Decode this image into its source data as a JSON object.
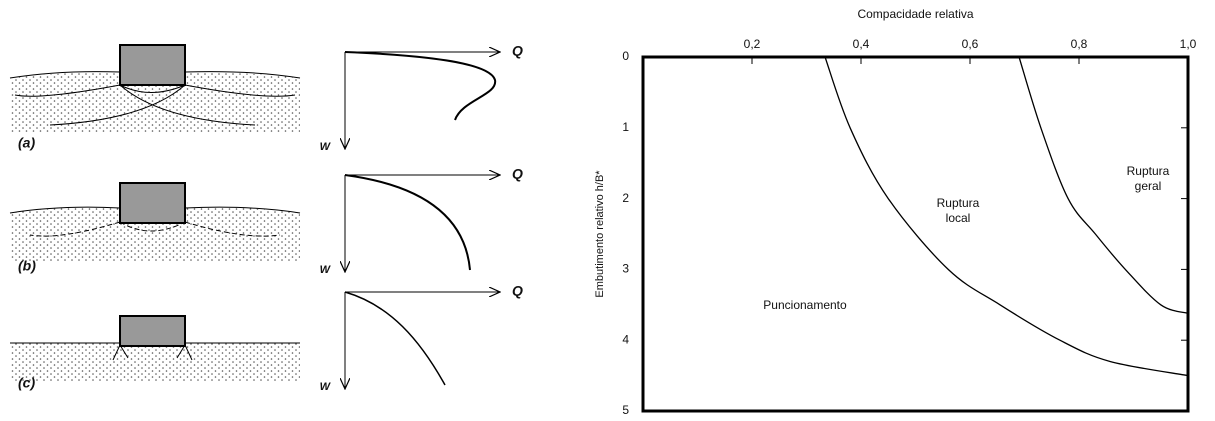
{
  "diagram": {
    "panels": [
      {
        "label": "(a)",
        "load_label": "Q",
        "settlement_label": "W"
      },
      {
        "label": "(b)",
        "load_label": "Q",
        "settlement_label": "W"
      },
      {
        "label": "(c)",
        "load_label": "Q",
        "settlement_label": "W"
      }
    ]
  },
  "chart_data": {
    "type": "line",
    "title": "Compacidade relativa",
    "y_label": "Embutimento relativo h/B*",
    "xlim": [
      0,
      1
    ],
    "ylim": [
      0,
      5
    ],
    "y_inverted": true,
    "x_axis_position": "top",
    "xticks": [
      {
        "value": 0.2,
        "label": "0,2"
      },
      {
        "value": 0.4,
        "label": "0,4"
      },
      {
        "value": 0.6,
        "label": "0,6"
      },
      {
        "value": 0.8,
        "label": "0,8"
      },
      {
        "value": 1.0,
        "label": "1,0"
      }
    ],
    "yticks": [
      0,
      1,
      2,
      3,
      4,
      5
    ],
    "series": [
      {
        "color": "#000000",
        "x": [
          0.334,
          0.38,
          0.45,
          0.56,
          0.655,
          0.765,
          0.857,
          1.0
        ],
        "values": [
          0,
          1,
          2,
          3,
          3.5,
          4,
          4.3,
          4.5
        ]
      },
      {
        "color": "#000000",
        "x": [
          0.69,
          0.73,
          0.78,
          0.83,
          0.885,
          0.95,
          1.0
        ],
        "values": [
          0,
          1,
          2,
          2.5,
          3,
          3.5,
          3.62
        ]
      }
    ],
    "annotations": [
      [
        "Ruptura",
        "geral"
      ],
      [
        "Ruptura",
        "local"
      ],
      [
        "Puncionamento"
      ]
    ]
  }
}
